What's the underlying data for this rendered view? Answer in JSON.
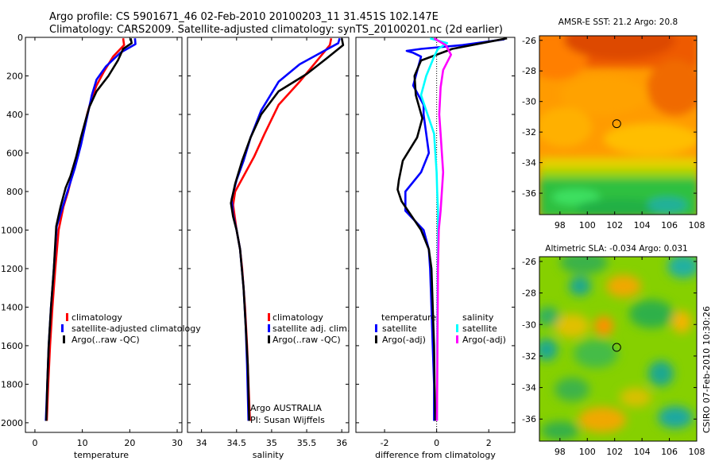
{
  "header": {
    "line1": "Argo profile: CS 5901671_46 02-Feb-2010 20100203_11 31.451S 102.147E",
    "line2": "Climatology: CARS2009. Satellite-adjusted climatology: synTS_20100201.nc (2d earlier)"
  },
  "colors": {
    "red": "#ff0000",
    "blue": "#0000ff",
    "black": "#000000",
    "cyan": "#00ffff",
    "magenta": "#ff00ff"
  },
  "chart_data": [
    {
      "id": "temperature",
      "type": "line",
      "xlabel": "temperature",
      "xlim": [
        -2,
        31
      ],
      "xticks": [
        "0",
        "10",
        "20",
        "30"
      ],
      "ylim": [
        0,
        2050
      ],
      "yticks": [
        "0",
        "200",
        "400",
        "600",
        "800",
        "1000",
        "1200",
        "1400",
        "1600",
        "1800",
        "2000"
      ],
      "legend": [
        "climatology",
        "satellite-adjusted climatology",
        "Argo(..raw -QC)"
      ],
      "series": [
        {
          "name": "climatology",
          "color": "red",
          "points": [
            [
              18.6,
              5
            ],
            [
              18.8,
              40
            ],
            [
              16.5,
              100
            ],
            [
              14.5,
              180
            ],
            [
              13,
              250
            ],
            [
              11.8,
              330
            ],
            [
              11,
              400
            ],
            [
              10.2,
              500
            ],
            [
              9,
              600
            ],
            [
              8,
              700
            ],
            [
              7,
              800
            ],
            [
              6,
              880
            ],
            [
              5,
              1000
            ],
            [
              4.3,
              1200
            ],
            [
              3.7,
              1400
            ],
            [
              3.2,
              1600
            ],
            [
              2.8,
              1800
            ],
            [
              2.5,
              1990
            ]
          ]
        },
        {
          "name": "satellite-adjusted climatology",
          "color": "blue",
          "points": [
            [
              21.1,
              5
            ],
            [
              21.2,
              35
            ],
            [
              18,
              80
            ],
            [
              15,
              150
            ],
            [
              13,
              220
            ],
            [
              12,
              300
            ],
            [
              11.3,
              380
            ],
            [
              10.6,
              460
            ],
            [
              9.7,
              560
            ],
            [
              8.4,
              680
            ],
            [
              7,
              790
            ],
            [
              5.6,
              900
            ],
            [
              4.6,
              980
            ],
            [
              4,
              1200
            ],
            [
              3.4,
              1400
            ],
            [
              2.9,
              1600
            ],
            [
              2.6,
              1800
            ],
            [
              2.3,
              1990
            ]
          ]
        },
        {
          "name": "Argo(..raw -QC)",
          "color": "black",
          "points": [
            [
              20.2,
              5
            ],
            [
              20.4,
              30
            ],
            [
              18.6,
              60
            ],
            [
              17.5,
              120
            ],
            [
              15.5,
              200
            ],
            [
              13,
              280
            ],
            [
              11.5,
              360
            ],
            [
              10.8,
              420
            ],
            [
              9.7,
              520
            ],
            [
              8.7,
              620
            ],
            [
              7.5,
              720
            ],
            [
              6.5,
              780
            ],
            [
              5.4,
              880
            ],
            [
              4.5,
              980
            ],
            [
              4,
              1200
            ],
            [
              3.4,
              1400
            ],
            [
              2.9,
              1600
            ],
            [
              2.6,
              1800
            ],
            [
              2.4,
              1990
            ]
          ]
        }
      ]
    },
    {
      "id": "salinity",
      "type": "line",
      "xlabel": "salinity",
      "xlim": [
        33.8,
        36.1
      ],
      "xticks": [
        "34",
        "34.5",
        "35",
        "35.5",
        "36"
      ],
      "ylim": [
        0,
        2050
      ],
      "legend": [
        "climatology",
        "satellite adj. clim.",
        "Argo(..raw -QC)"
      ],
      "annotation": [
        "Argo AUSTRALIA",
        "PI: Susan Wijffels"
      ],
      "series": [
        {
          "name": "climatology",
          "color": "red",
          "points": [
            [
              35.85,
              5
            ],
            [
              35.83,
              40
            ],
            [
              35.65,
              120
            ],
            [
              35.4,
              230
            ],
            [
              35.1,
              350
            ],
            [
              34.9,
              500
            ],
            [
              34.75,
              620
            ],
            [
              34.6,
              720
            ],
            [
              34.48,
              800
            ],
            [
              34.45,
              870
            ],
            [
              34.5,
              1000
            ],
            [
              34.55,
              1100
            ],
            [
              34.58,
              1200
            ],
            [
              34.62,
              1400
            ],
            [
              34.65,
              1600
            ],
            [
              34.67,
              1800
            ],
            [
              34.69,
              1990
            ]
          ]
        },
        {
          "name": "satellite adj. clim.",
          "color": "blue",
          "points": [
            [
              35.97,
              5
            ],
            [
              35.95,
              30
            ],
            [
              35.7,
              80
            ],
            [
              35.4,
              140
            ],
            [
              35.1,
              230
            ],
            [
              34.85,
              380
            ],
            [
              34.7,
              520
            ],
            [
              34.6,
              640
            ],
            [
              34.5,
              740
            ],
            [
              34.43,
              840
            ],
            [
              34.45,
              920
            ],
            [
              34.5,
              1000
            ],
            [
              34.55,
              1100
            ],
            [
              34.6,
              1300
            ],
            [
              34.63,
              1500
            ],
            [
              34.65,
              1700
            ],
            [
              34.67,
              1990
            ]
          ]
        },
        {
          "name": "Argo(..raw -QC)",
          "color": "black",
          "points": [
            [
              36.0,
              5
            ],
            [
              36.02,
              40
            ],
            [
              35.78,
              110
            ],
            [
              35.5,
              190
            ],
            [
              35.1,
              280
            ],
            [
              34.85,
              400
            ],
            [
              34.7,
              520
            ],
            [
              34.58,
              640
            ],
            [
              34.48,
              760
            ],
            [
              34.42,
              860
            ],
            [
              34.45,
              930
            ],
            [
              34.5,
              1000
            ],
            [
              34.55,
              1100
            ],
            [
              34.6,
              1300
            ],
            [
              34.63,
              1500
            ],
            [
              34.66,
              1700
            ],
            [
              34.68,
              1990
            ]
          ]
        }
      ]
    },
    {
      "id": "difference",
      "type": "line",
      "xlabel": "difference from climatology",
      "xlim": [
        -3.1,
        3.0
      ],
      "xticks": [
        "-2",
        "0",
        "2"
      ],
      "ylim": [
        0,
        2050
      ],
      "legend": {
        "temperature": "temperature",
        "salinity": "salinity",
        "t_sat": "satellite",
        "t_argo": "Argo(-adj)",
        "s_sat": "satellite",
        "s_argo": "Argo(-adj)"
      },
      "series": [
        {
          "name": "temperature satellite",
          "color": "blue",
          "points": [
            [
              2.6,
              10
            ],
            [
              1,
              40
            ],
            [
              -0.6,
              60
            ],
            [
              -1.15,
              70
            ],
            [
              -0.9,
              80
            ],
            [
              -0.6,
              100
            ],
            [
              -0.7,
              150
            ],
            [
              -0.9,
              250
            ],
            [
              -0.5,
              350
            ],
            [
              -0.5,
              400
            ],
            [
              -0.4,
              500
            ],
            [
              -0.3,
              600
            ],
            [
              -0.6,
              700
            ],
            [
              -1.2,
              800
            ],
            [
              -1.2,
              900
            ],
            [
              -0.5,
              1000
            ],
            [
              -0.3,
              1100
            ],
            [
              -0.25,
              1200
            ],
            [
              -0.2,
              1400
            ],
            [
              -0.15,
              1600
            ],
            [
              -0.1,
              1800
            ],
            [
              -0.1,
              1990
            ]
          ]
        },
        {
          "name": "temperature Argo(-adj)",
          "color": "black",
          "points": [
            [
              2.7,
              5
            ],
            [
              0.6,
              60
            ],
            [
              -0.6,
              120
            ],
            [
              -0.85,
              200
            ],
            [
              -0.8,
              300
            ],
            [
              -0.55,
              420
            ],
            [
              -0.75,
              520
            ],
            [
              -1.3,
              640
            ],
            [
              -1.45,
              740
            ],
            [
              -1.5,
              790
            ],
            [
              -1.35,
              850
            ],
            [
              -1.0,
              920
            ],
            [
              -0.6,
              1000
            ],
            [
              -0.3,
              1100
            ],
            [
              -0.2,
              1200
            ],
            [
              -0.15,
              1400
            ],
            [
              -0.1,
              1600
            ],
            [
              -0.08,
              1800
            ],
            [
              -0.05,
              1990
            ]
          ]
        },
        {
          "name": "salinity satellite",
          "color": "cyan",
          "points": [
            [
              -0.25,
              5
            ],
            [
              0.4,
              30
            ],
            [
              0.05,
              60
            ],
            [
              -0.1,
              100
            ],
            [
              -0.4,
              200
            ],
            [
              -0.6,
              300
            ],
            [
              -0.35,
              400
            ],
            [
              -0.1,
              500
            ],
            [
              -0.05,
              600
            ],
            [
              0.0,
              700
            ],
            [
              0.02,
              800
            ],
            [
              0.05,
              900
            ],
            [
              0.05,
              1000
            ],
            [
              0.04,
              1200
            ],
            [
              0.03,
              1400
            ],
            [
              0.02,
              1600
            ],
            [
              0.02,
              1800
            ],
            [
              0.01,
              1990
            ]
          ]
        },
        {
          "name": "salinity Argo(-adj)",
          "color": "magenta",
          "points": [
            [
              -0.1,
              5
            ],
            [
              0.35,
              40
            ],
            [
              0.55,
              90
            ],
            [
              0.25,
              170
            ],
            [
              0.15,
              260
            ],
            [
              0.1,
              400
            ],
            [
              0.15,
              500
            ],
            [
              0.2,
              600
            ],
            [
              0.25,
              700
            ],
            [
              0.2,
              800
            ],
            [
              0.15,
              900
            ],
            [
              0.08,
              1000
            ],
            [
              0.05,
              1200
            ],
            [
              0.04,
              1400
            ],
            [
              0.03,
              1600
            ],
            [
              0.02,
              1800
            ],
            [
              0.01,
              1990
            ]
          ]
        }
      ]
    }
  ],
  "maps": {
    "sst": {
      "title": "AMSR-E SST: 21.2 Argo: 20.8",
      "xlim": [
        96.5,
        108
      ],
      "ylim": [
        -37.4,
        -25.7
      ],
      "xticks": [
        "98",
        "100",
        "102",
        "104",
        "106",
        "108"
      ],
      "yticks": [
        "-26",
        "-28",
        "-30",
        "-32",
        "-34",
        "-36"
      ],
      "marker": {
        "lon": 102.15,
        "lat": -31.45
      }
    },
    "sla": {
      "title": "Altimetric SLA: -0.034 Argo: 0.031",
      "xlim": [
        96.5,
        108
      ],
      "ylim": [
        -37.4,
        -25.7
      ],
      "xticks": [
        "98",
        "100",
        "102",
        "104",
        "106",
        "108"
      ],
      "yticks": [
        "-26",
        "-28",
        "-30",
        "-32",
        "-34",
        "-36"
      ],
      "marker": {
        "lon": 102.15,
        "lat": -31.45
      }
    },
    "credit": "CSIRO 07-Feb-2010 10:30:26"
  }
}
